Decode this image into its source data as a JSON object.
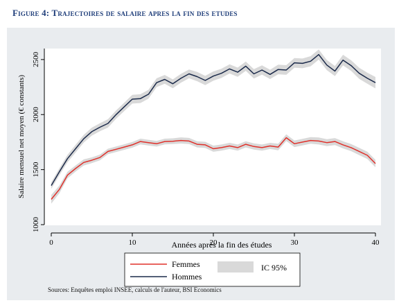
{
  "figure": {
    "title": "Figure 4: Trajectoires de salaire apres la fin des etudes",
    "source": "Sources: Enquêtes emploi INSEE, calculs de l'auteur, BSI Economics"
  },
  "chart_data": {
    "type": "line",
    "xlabel": "Années après la fin des études",
    "ylabel": "Salaire mensuel net moyen (€ constants)",
    "xlim": [
      0,
      40
    ],
    "ylim": [
      1000,
      2600
    ],
    "xticks": [
      0,
      10,
      20,
      30,
      40
    ],
    "yticks": [
      1000,
      1500,
      2000,
      2500
    ],
    "grid": false,
    "legend_position": "bottom",
    "confidence_band_label": "IC 95%",
    "confidence_band_color": "#d9d9d9",
    "x": [
      0,
      1,
      2,
      3,
      4,
      5,
      6,
      7,
      8,
      9,
      10,
      11,
      12,
      13,
      14,
      15,
      16,
      17,
      18,
      19,
      20,
      21,
      22,
      23,
      24,
      25,
      26,
      27,
      28,
      29,
      30,
      31,
      32,
      33,
      34,
      35,
      36,
      37,
      38,
      39,
      40
    ],
    "series": [
      {
        "name": "Femmes",
        "color": "#e0302a",
        "values": [
          1230,
          1320,
          1450,
          1510,
          1565,
          1585,
          1610,
          1665,
          1685,
          1705,
          1725,
          1755,
          1745,
          1735,
          1755,
          1758,
          1765,
          1760,
          1730,
          1725,
          1690,
          1700,
          1715,
          1700,
          1730,
          1710,
          1700,
          1715,
          1705,
          1790,
          1735,
          1750,
          1765,
          1760,
          1745,
          1755,
          1725,
          1700,
          1665,
          1630,
          1555
        ],
        "band": [
          40,
          35,
          30,
          28,
          28,
          26,
          26,
          25,
          25,
          25,
          26,
          26,
          26,
          26,
          26,
          26,
          28,
          28,
          28,
          28,
          28,
          28,
          28,
          28,
          28,
          28,
          28,
          28,
          30,
          30,
          30,
          30,
          30,
          32,
          32,
          32,
          32,
          32,
          33,
          33,
          34
        ]
      },
      {
        "name": "Hommes",
        "color": "#1b2a4a",
        "values": [
          1355,
          1480,
          1600,
          1690,
          1780,
          1845,
          1885,
          1920,
          2000,
          2070,
          2140,
          2145,
          2185,
          2290,
          2320,
          2280,
          2330,
          2370,
          2345,
          2310,
          2350,
          2375,
          2415,
          2385,
          2440,
          2370,
          2405,
          2365,
          2410,
          2405,
          2470,
          2465,
          2485,
          2545,
          2450,
          2395,
          2495,
          2445,
          2375,
          2330,
          2290
        ],
        "band": [
          30,
          32,
          34,
          35,
          35,
          36,
          36,
          38,
          38,
          38,
          40,
          40,
          40,
          40,
          40,
          40,
          40,
          40,
          42,
          42,
          42,
          42,
          42,
          42,
          42,
          42,
          42,
          42,
          44,
          44,
          44,
          44,
          46,
          46,
          46,
          46,
          48,
          48,
          50,
          50,
          52
        ]
      }
    ]
  }
}
